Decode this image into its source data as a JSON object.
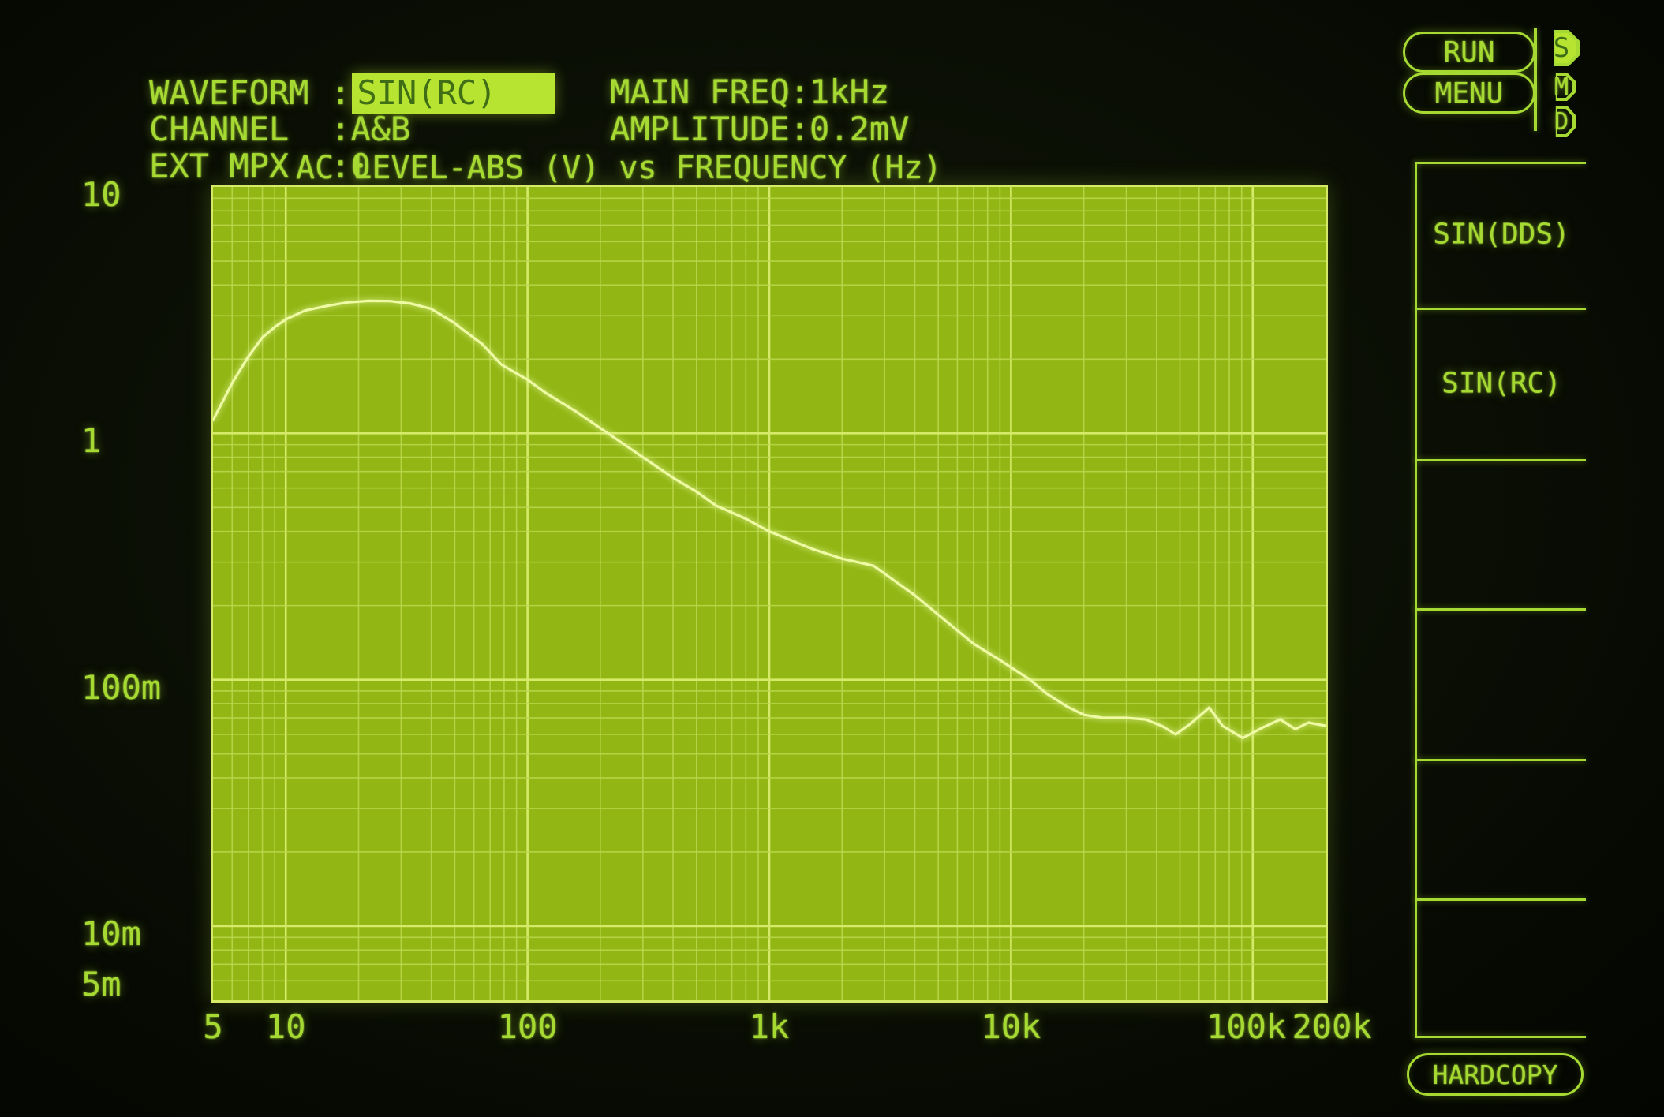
{
  "header": {
    "fields": [
      {
        "label": "WAVEFORM",
        "sep": ":",
        "value": "SIN(RC)",
        "highlighted": true
      },
      {
        "label": "CHANNEL",
        "sep": ":",
        "value": "A&B",
        "highlighted": false
      },
      {
        "label": "EXT MPX",
        "sep": ":",
        "value": "0",
        "highlighted": false
      }
    ],
    "params": [
      {
        "label": "MAIN FREQ",
        "sep": ":",
        "value": "1kHz"
      },
      {
        "label": "AMPLITUDE",
        "sep": ":",
        "value": "0.2mV"
      }
    ],
    "run_label": "RUN",
    "menu_label": "MENU",
    "status_badges": [
      {
        "label": "S",
        "active": true
      },
      {
        "label": "M",
        "active": false
      },
      {
        "label": "D",
        "active": false
      }
    ]
  },
  "chart_data": {
    "type": "line",
    "title": "AC LEVEL-ABS (V) vs FREQUENCY (Hz)",
    "xlabel": "FREQUENCY (Hz)",
    "ylabel": "AC LEVEL-ABS (V)",
    "x_scale": "log",
    "y_scale": "log",
    "xlim": [
      5,
      200000
    ],
    "ylim": [
      0.005,
      10
    ],
    "grid": "on",
    "x_ticks": [
      {
        "label": "5",
        "value": 5
      },
      {
        "label": "10",
        "value": 10
      },
      {
        "label": "100",
        "value": 100
      },
      {
        "label": "1k",
        "value": 1000
      },
      {
        "label": "10k",
        "value": 10000
      },
      {
        "label": "100k",
        "value": 100000
      },
      {
        "label": "200k",
        "value": 200000
      }
    ],
    "y_ticks": [
      {
        "label": "10",
        "value": 10
      },
      {
        "label": "1",
        "value": 1
      },
      {
        "label": "100m",
        "value": 0.1
      },
      {
        "label": "10m",
        "value": 0.01
      },
      {
        "label": "5m",
        "value": 0.005
      }
    ],
    "points": [
      [
        5,
        1.13
      ],
      [
        6,
        1.6
      ],
      [
        7,
        2.05
      ],
      [
        8,
        2.45
      ],
      [
        9,
        2.7
      ],
      [
        10,
        2.9
      ],
      [
        12,
        3.15
      ],
      [
        15,
        3.3
      ],
      [
        18,
        3.4
      ],
      [
        22,
        3.45
      ],
      [
        27,
        3.44
      ],
      [
        33,
        3.36
      ],
      [
        40,
        3.2
      ],
      [
        50,
        2.8
      ],
      [
        55,
        2.6
      ],
      [
        65,
        2.3
      ],
      [
        78,
        1.9
      ],
      [
        90,
        1.75
      ],
      [
        100,
        1.65
      ],
      [
        120,
        1.45
      ],
      [
        160,
        1.22
      ],
      [
        200,
        1.05
      ],
      [
        300,
        0.8
      ],
      [
        400,
        0.66
      ],
      [
        500,
        0.58
      ],
      [
        600,
        0.51
      ],
      [
        800,
        0.45
      ],
      [
        1000,
        0.4
      ],
      [
        1500,
        0.34
      ],
      [
        2000,
        0.31
      ],
      [
        2700,
        0.29
      ],
      [
        4000,
        0.22
      ],
      [
        5500,
        0.17
      ],
      [
        7000,
        0.14
      ],
      [
        9000,
        0.12
      ],
      [
        12000,
        0.1
      ],
      [
        14000,
        0.088
      ],
      [
        17000,
        0.078
      ],
      [
        20000,
        0.072
      ],
      [
        24000,
        0.07
      ],
      [
        30000,
        0.07
      ],
      [
        36000,
        0.069
      ],
      [
        42000,
        0.065
      ],
      [
        48000,
        0.06
      ],
      [
        55000,
        0.066
      ],
      [
        66000,
        0.077
      ],
      [
        75000,
        0.065
      ],
      [
        91000,
        0.058
      ],
      [
        110000,
        0.064
      ],
      [
        130000,
        0.069
      ],
      [
        150000,
        0.063
      ],
      [
        170000,
        0.067
      ],
      [
        200000,
        0.065
      ]
    ]
  },
  "side_menu": {
    "items": [
      {
        "label": "SIN(DDS)"
      },
      {
        "label": "SIN(RC)"
      },
      {
        "label": ""
      },
      {
        "label": ""
      },
      {
        "label": ""
      },
      {
        "label": ""
      }
    ],
    "hardcopy_label": "HARDCOPY"
  },
  "colors": {
    "accent": "#a6da33",
    "plot_bg": "#92b714",
    "grid_minor": "#bdd84f",
    "grid_major": "#d5ea68",
    "trace": "#eefaa4",
    "hl_fill": "#b6e431",
    "hl_text": "#3f6e16"
  }
}
